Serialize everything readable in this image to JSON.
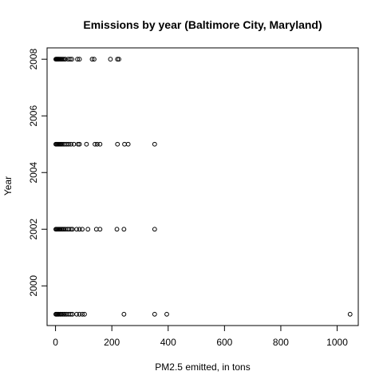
{
  "chart_data": {
    "type": "scatter",
    "title": "Emissions by year (Baltimore City, Maryland)",
    "xlabel": "PM2.5 emitted, in tons",
    "ylabel": "Year",
    "xlim": [
      -30,
      1075
    ],
    "ylim": [
      1998.6,
      2008.4
    ],
    "x_ticks": [
      0,
      200,
      400,
      600,
      800,
      1000
    ],
    "y_ticks": [
      2000,
      2002,
      2004,
      2006,
      2008
    ],
    "grid": false,
    "legend": "none",
    "marker": "open-circle",
    "series": [
      {
        "points": [
          {
            "x": 1,
            "y": 2008
          },
          {
            "x": 3,
            "y": 2008
          },
          {
            "x": 5,
            "y": 2008
          },
          {
            "x": 7,
            "y": 2008
          },
          {
            "x": 9,
            "y": 2008
          },
          {
            "x": 11,
            "y": 2008
          },
          {
            "x": 13,
            "y": 2008
          },
          {
            "x": 16,
            "y": 2008
          },
          {
            "x": 19,
            "y": 2008
          },
          {
            "x": 22,
            "y": 2008
          },
          {
            "x": 26,
            "y": 2008
          },
          {
            "x": 30,
            "y": 2008
          },
          {
            "x": 35,
            "y": 2008
          },
          {
            "x": 45,
            "y": 2008
          },
          {
            "x": 52,
            "y": 2008
          },
          {
            "x": 58,
            "y": 2008
          },
          {
            "x": 78,
            "y": 2008
          },
          {
            "x": 85,
            "y": 2008
          },
          {
            "x": 130,
            "y": 2008
          },
          {
            "x": 137,
            "y": 2008
          },
          {
            "x": 195,
            "y": 2008
          },
          {
            "x": 220,
            "y": 2008
          },
          {
            "x": 225,
            "y": 2008
          },
          {
            "x": 1,
            "y": 2005
          },
          {
            "x": 3,
            "y": 2005
          },
          {
            "x": 6,
            "y": 2005
          },
          {
            "x": 9,
            "y": 2005
          },
          {
            "x": 12,
            "y": 2005
          },
          {
            "x": 15,
            "y": 2005
          },
          {
            "x": 18,
            "y": 2005
          },
          {
            "x": 22,
            "y": 2005
          },
          {
            "x": 27,
            "y": 2005
          },
          {
            "x": 33,
            "y": 2005
          },
          {
            "x": 40,
            "y": 2005
          },
          {
            "x": 47,
            "y": 2005
          },
          {
            "x": 55,
            "y": 2005
          },
          {
            "x": 65,
            "y": 2005
          },
          {
            "x": 80,
            "y": 2005
          },
          {
            "x": 85,
            "y": 2005
          },
          {
            "x": 110,
            "y": 2005
          },
          {
            "x": 140,
            "y": 2005
          },
          {
            "x": 148,
            "y": 2005
          },
          {
            "x": 158,
            "y": 2005
          },
          {
            "x": 220,
            "y": 2005
          },
          {
            "x": 245,
            "y": 2005
          },
          {
            "x": 258,
            "y": 2005
          },
          {
            "x": 352,
            "y": 2005
          },
          {
            "x": 1,
            "y": 2002
          },
          {
            "x": 3,
            "y": 2002
          },
          {
            "x": 6,
            "y": 2002
          },
          {
            "x": 9,
            "y": 2002
          },
          {
            "x": 12,
            "y": 2002
          },
          {
            "x": 15,
            "y": 2002
          },
          {
            "x": 18,
            "y": 2002
          },
          {
            "x": 22,
            "y": 2002
          },
          {
            "x": 26,
            "y": 2002
          },
          {
            "x": 30,
            "y": 2002
          },
          {
            "x": 35,
            "y": 2002
          },
          {
            "x": 42,
            "y": 2002
          },
          {
            "x": 48,
            "y": 2002
          },
          {
            "x": 55,
            "y": 2002
          },
          {
            "x": 60,
            "y": 2002
          },
          {
            "x": 75,
            "y": 2002
          },
          {
            "x": 85,
            "y": 2002
          },
          {
            "x": 95,
            "y": 2002
          },
          {
            "x": 115,
            "y": 2002
          },
          {
            "x": 145,
            "y": 2002
          },
          {
            "x": 158,
            "y": 2002
          },
          {
            "x": 218,
            "y": 2002
          },
          {
            "x": 243,
            "y": 2002
          },
          {
            "x": 352,
            "y": 2002
          },
          {
            "x": 1,
            "y": 1999
          },
          {
            "x": 3,
            "y": 1999
          },
          {
            "x": 6,
            "y": 1999
          },
          {
            "x": 9,
            "y": 1999
          },
          {
            "x": 12,
            "y": 1999
          },
          {
            "x": 16,
            "y": 1999
          },
          {
            "x": 20,
            "y": 1999
          },
          {
            "x": 25,
            "y": 1999
          },
          {
            "x": 30,
            "y": 1999
          },
          {
            "x": 35,
            "y": 1999
          },
          {
            "x": 40,
            "y": 1999
          },
          {
            "x": 47,
            "y": 1999
          },
          {
            "x": 54,
            "y": 1999
          },
          {
            "x": 60,
            "y": 1999
          },
          {
            "x": 75,
            "y": 1999
          },
          {
            "x": 85,
            "y": 1999
          },
          {
            "x": 95,
            "y": 1999
          },
          {
            "x": 103,
            "y": 1999
          },
          {
            "x": 243,
            "y": 1999
          },
          {
            "x": 352,
            "y": 1999
          },
          {
            "x": 395,
            "y": 1999
          },
          {
            "x": 1046,
            "y": 1999
          }
        ]
      }
    ]
  }
}
